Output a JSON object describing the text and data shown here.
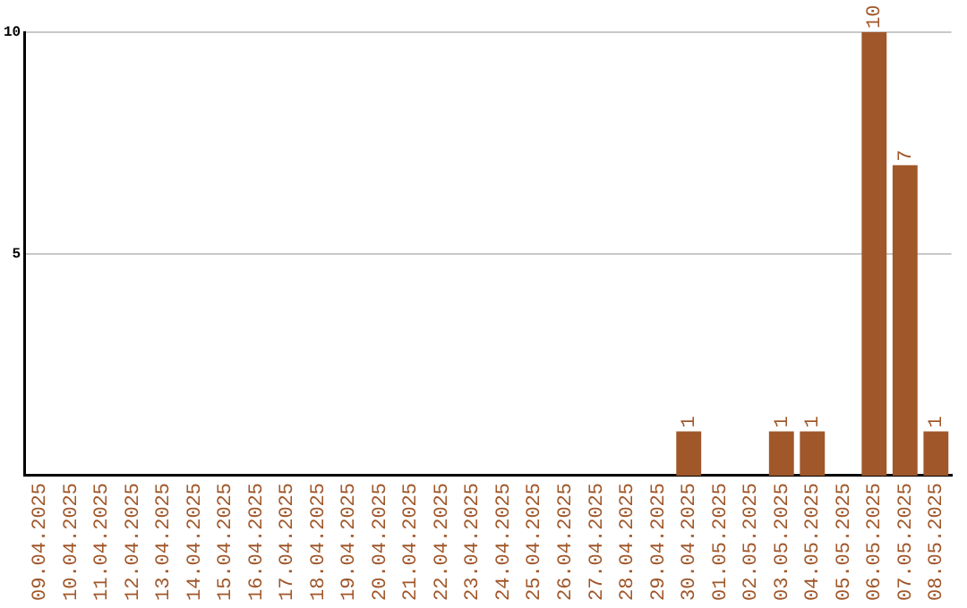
{
  "chart_data": {
    "type": "bar",
    "categories": [
      "09.04.2025",
      "10.04.2025",
      "11.04.2025",
      "12.04.2025",
      "13.04.2025",
      "14.04.2025",
      "15.04.2025",
      "16.04.2025",
      "17.04.2025",
      "18.04.2025",
      "19.04.2025",
      "20.04.2025",
      "21.04.2025",
      "22.04.2025",
      "23.04.2025",
      "24.04.2025",
      "25.04.2025",
      "26.04.2025",
      "27.04.2025",
      "28.04.2025",
      "29.04.2025",
      "30.04.2025",
      "01.05.2025",
      "02.05.2025",
      "03.05.2025",
      "04.05.2025",
      "05.05.2025",
      "06.05.2025",
      "07.05.2025",
      "08.05.2025"
    ],
    "values": [
      0,
      0,
      0,
      0,
      0,
      0,
      0,
      0,
      0,
      0,
      0,
      0,
      0,
      0,
      0,
      0,
      0,
      0,
      0,
      0,
      0,
      1,
      0,
      0,
      1,
      1,
      0,
      10,
      7,
      1
    ],
    "value_labels": [
      null,
      null,
      null,
      null,
      null,
      null,
      null,
      null,
      null,
      null,
      null,
      null,
      null,
      null,
      null,
      null,
      null,
      null,
      null,
      null,
      null,
      "1",
      null,
      null,
      "1",
      "1",
      null,
      "10",
      "7",
      "1"
    ],
    "color": "#a0572a",
    "ylim": [
      0,
      10
    ],
    "yticks": [
      5,
      10
    ],
    "grid": "y",
    "legend": false
  }
}
